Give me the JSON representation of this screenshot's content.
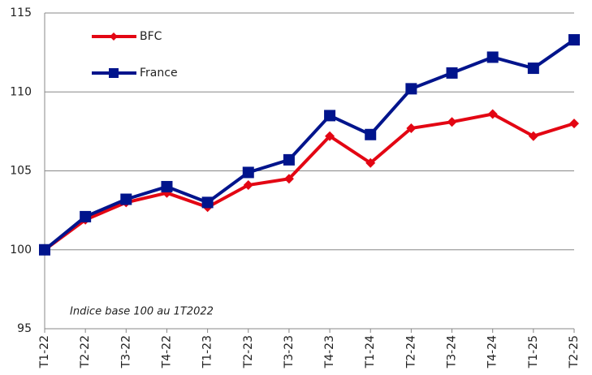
{
  "chart_data": {
    "type": "line",
    "categories": [
      "T1-22",
      "T2-22",
      "T3-22",
      "T4-22",
      "T1-23",
      "T2-23",
      "T3-23",
      "T4-23",
      "T1-24",
      "T2-24",
      "T3-24",
      "T4-24",
      "T1-25",
      "T2-25"
    ],
    "series": [
      {
        "name": "BFC",
        "color": "#e30613",
        "marker": "diamond",
        "values": [
          100,
          101.9,
          103.0,
          103.6,
          102.7,
          104.1,
          104.5,
          107.2,
          105.5,
          107.7,
          108.1,
          108.6,
          107.2,
          108.0
        ]
      },
      {
        "name": "France",
        "color": "#00148c",
        "marker": "square",
        "values": [
          100,
          102.1,
          103.2,
          104.0,
          103.0,
          104.9,
          105.7,
          108.5,
          107.3,
          110.2,
          111.2,
          112.2,
          111.5,
          113.3
        ]
      }
    ],
    "ylim": [
      95,
      115
    ],
    "yticks": [
      95,
      100,
      105,
      110,
      115
    ],
    "grid": true,
    "annotation": "Indice base 100 au 1T2022"
  }
}
